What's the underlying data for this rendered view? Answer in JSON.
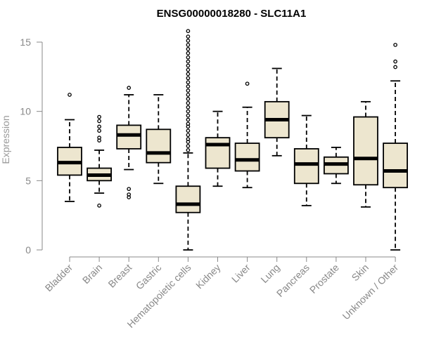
{
  "chart_data": {
    "type": "boxplot",
    "title": "ENSG00000018280 - SLC11A1",
    "xlabel": "",
    "ylabel": "Expression",
    "ylim": [
      0,
      15
    ],
    "yticks": [
      0,
      5,
      10,
      15
    ],
    "box_fill": "#EDE6CF",
    "categories": [
      "Bladder",
      "Brain",
      "Breast",
      "Gastric",
      "Hematopoietic cells",
      "Kidney",
      "Liver",
      "Lung",
      "Pancreas",
      "Prostate",
      "Skin",
      "Unknown / Other"
    ],
    "boxes": [
      {
        "name": "Bladder",
        "whisker_low": 3.5,
        "q1": 5.4,
        "median": 6.3,
        "q3": 7.4,
        "whisker_high": 9.4,
        "outliers": [
          11.2
        ]
      },
      {
        "name": "Brain",
        "whisker_low": 4.1,
        "q1": 5.0,
        "median": 5.4,
        "q3": 5.9,
        "whisker_high": 7.2,
        "outliers": [
          3.2,
          7.9,
          8.1,
          8.6,
          8.9,
          9.3,
          9.6
        ]
      },
      {
        "name": "Breast",
        "whisker_low": 5.8,
        "q1": 7.3,
        "median": 8.3,
        "q3": 9.0,
        "whisker_high": 11.2,
        "outliers": [
          3.8,
          4.0,
          4.4,
          11.7
        ]
      },
      {
        "name": "Gastric",
        "whisker_low": 4.8,
        "q1": 6.3,
        "median": 7.0,
        "q3": 8.7,
        "whisker_high": 11.2,
        "outliers": []
      },
      {
        "name": "Hematopoietic cells",
        "whisker_low": 0.0,
        "q1": 2.7,
        "median": 3.3,
        "q3": 4.6,
        "whisker_high": 7.0,
        "outliers": [
          7.2,
          7.5,
          7.8,
          8.0,
          8.3,
          8.6,
          8.9,
          9.1,
          9.4,
          9.7,
          10.0,
          10.3,
          10.6,
          10.9,
          11.2,
          11.5,
          11.8,
          12.1,
          12.4,
          12.7,
          13.0,
          13.3,
          13.6,
          13.9,
          14.2,
          14.5,
          14.8,
          15.1,
          15.4,
          15.8
        ]
      },
      {
        "name": "Kidney",
        "whisker_low": 4.6,
        "q1": 5.9,
        "median": 7.6,
        "q3": 8.1,
        "whisker_high": 10.0,
        "outliers": []
      },
      {
        "name": "Liver",
        "whisker_low": 4.5,
        "q1": 5.7,
        "median": 6.5,
        "q3": 7.7,
        "whisker_high": 10.3,
        "outliers": [
          12.0
        ]
      },
      {
        "name": "Lung",
        "whisker_low": 6.8,
        "q1": 8.1,
        "median": 9.4,
        "q3": 10.7,
        "whisker_high": 13.1,
        "outliers": []
      },
      {
        "name": "Pancreas",
        "whisker_low": 3.2,
        "q1": 4.8,
        "median": 6.2,
        "q3": 7.3,
        "whisker_high": 9.7,
        "outliers": []
      },
      {
        "name": "Prostate",
        "whisker_low": 4.8,
        "q1": 5.5,
        "median": 6.2,
        "q3": 6.7,
        "whisker_high": 7.4,
        "outliers": []
      },
      {
        "name": "Skin",
        "whisker_low": 3.1,
        "q1": 4.7,
        "median": 6.6,
        "q3": 9.6,
        "whisker_high": 10.7,
        "outliers": []
      },
      {
        "name": "Unknown / Other",
        "whisker_low": 0.0,
        "q1": 4.5,
        "median": 5.7,
        "q3": 7.7,
        "whisker_high": 12.2,
        "outliers": [
          13.2,
          13.6,
          14.8
        ]
      }
    ]
  }
}
